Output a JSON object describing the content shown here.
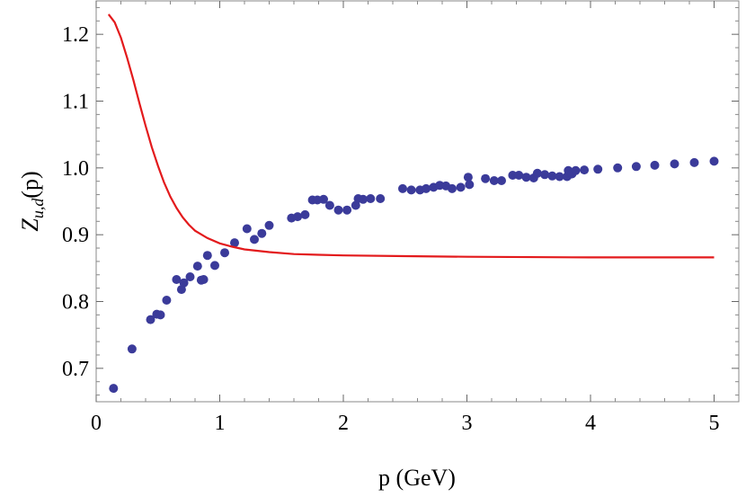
{
  "chart_data": {
    "type": "scatter",
    "title": "",
    "xlabel": "p (GeV)",
    "ylabel_main": "Z",
    "ylabel_sub": "u,d",
    "ylabel_tail": "(p)",
    "xlim": [
      0,
      5.2
    ],
    "ylim": [
      0.65,
      1.25
    ],
    "x_ticks": [
      0,
      1,
      2,
      3,
      4,
      5
    ],
    "x_tick_labels": [
      "0",
      "1",
      "2",
      "3",
      "4",
      "5"
    ],
    "y_ticks": [
      0.7,
      0.8,
      0.9,
      1.0,
      1.1,
      1.2
    ],
    "y_tick_labels": [
      "0.7",
      "0.8",
      "0.9",
      "1.0",
      "1.1",
      "1.2"
    ],
    "grid": false,
    "series": [
      {
        "kind": "scatter",
        "color": "#3b3b9a",
        "points": [
          [
            0.14,
            0.67
          ],
          [
            0.29,
            0.729
          ],
          [
            0.44,
            0.773
          ],
          [
            0.49,
            0.781
          ],
          [
            0.52,
            0.78
          ],
          [
            0.57,
            0.802
          ],
          [
            0.65,
            0.833
          ],
          [
            0.69,
            0.818
          ],
          [
            0.71,
            0.828
          ],
          [
            0.76,
            0.837
          ],
          [
            0.82,
            0.853
          ],
          [
            0.85,
            0.832
          ],
          [
            0.87,
            0.833
          ],
          [
            0.9,
            0.869
          ],
          [
            0.96,
            0.854
          ],
          [
            1.04,
            0.873
          ],
          [
            1.12,
            0.888
          ],
          [
            1.22,
            0.909
          ],
          [
            1.28,
            0.893
          ],
          [
            1.34,
            0.902
          ],
          [
            1.4,
            0.914
          ],
          [
            1.58,
            0.925
          ],
          [
            1.63,
            0.927
          ],
          [
            1.69,
            0.93
          ],
          [
            1.75,
            0.952
          ],
          [
            1.79,
            0.952
          ],
          [
            1.84,
            0.953
          ],
          [
            1.89,
            0.944
          ],
          [
            1.96,
            0.937
          ],
          [
            2.03,
            0.937
          ],
          [
            2.1,
            0.944
          ],
          [
            2.12,
            0.954
          ],
          [
            2.16,
            0.953
          ],
          [
            2.22,
            0.954
          ],
          [
            2.3,
            0.954
          ],
          [
            2.48,
            0.969
          ],
          [
            2.55,
            0.967
          ],
          [
            2.62,
            0.967
          ],
          [
            2.67,
            0.969
          ],
          [
            2.73,
            0.971
          ],
          [
            2.78,
            0.974
          ],
          [
            2.83,
            0.973
          ],
          [
            2.88,
            0.969
          ],
          [
            2.95,
            0.971
          ],
          [
            3.01,
            0.986
          ],
          [
            3.02,
            0.975
          ],
          [
            3.15,
            0.984
          ],
          [
            3.22,
            0.981
          ],
          [
            3.28,
            0.981
          ],
          [
            3.37,
            0.989
          ],
          [
            3.42,
            0.989
          ],
          [
            3.48,
            0.986
          ],
          [
            3.54,
            0.985
          ],
          [
            3.57,
            0.992
          ],
          [
            3.63,
            0.99
          ],
          [
            3.69,
            0.988
          ],
          [
            3.75,
            0.987
          ],
          [
            3.81,
            0.987
          ],
          [
            3.82,
            0.996
          ],
          [
            3.85,
            0.991
          ],
          [
            3.88,
            0.996
          ],
          [
            3.95,
            0.997
          ],
          [
            4.06,
            0.998
          ],
          [
            4.22,
            1.0
          ],
          [
            4.37,
            1.002
          ],
          [
            4.52,
            1.004
          ],
          [
            4.68,
            1.006
          ],
          [
            4.84,
            1.008
          ],
          [
            5.0,
            1.01
          ]
        ]
      },
      {
        "kind": "line",
        "color": "#e31a1c",
        "points": [
          [
            0.1,
            1.23
          ],
          [
            0.15,
            1.218
          ],
          [
            0.2,
            1.195
          ],
          [
            0.25,
            1.165
          ],
          [
            0.3,
            1.132
          ],
          [
            0.35,
            1.097
          ],
          [
            0.4,
            1.063
          ],
          [
            0.45,
            1.031
          ],
          [
            0.5,
            1.003
          ],
          [
            0.55,
            0.978
          ],
          [
            0.6,
            0.957
          ],
          [
            0.65,
            0.94
          ],
          [
            0.7,
            0.926
          ],
          [
            0.75,
            0.915
          ],
          [
            0.8,
            0.906
          ],
          [
            0.9,
            0.895
          ],
          [
            1.0,
            0.887
          ],
          [
            1.1,
            0.882
          ],
          [
            1.2,
            0.878
          ],
          [
            1.4,
            0.874
          ],
          [
            1.6,
            0.871
          ],
          [
            1.8,
            0.87
          ],
          [
            2.0,
            0.869
          ],
          [
            2.5,
            0.868
          ],
          [
            3.0,
            0.867
          ],
          [
            4.0,
            0.866
          ],
          [
            5.0,
            0.866
          ]
        ]
      }
    ]
  }
}
